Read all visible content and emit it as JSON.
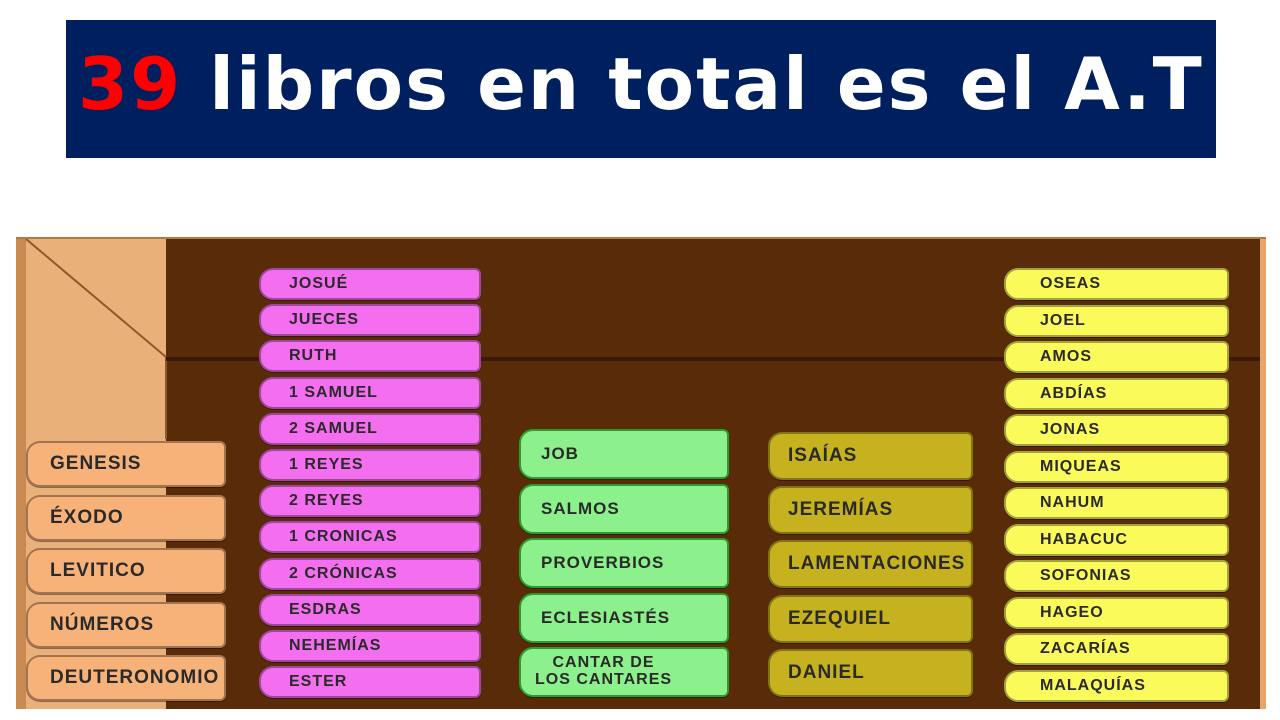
{
  "title": {
    "number": "39",
    "rest": " libros en total es el A.T"
  },
  "colors": {
    "title_bg": "#001f5f",
    "title_number": "#ff0000",
    "pentateuch": "#f7b27a",
    "history": "#f46ef0",
    "poetry": "#8cf08c",
    "major_prophets": "#c6b21e",
    "minor_prophets": "#fafa5a",
    "shelf_dark": "#5a2b08"
  },
  "groups": {
    "pentateuch": [
      "GENESIS",
      "ÉXODO",
      "LEVITICO",
      "NÚMEROS",
      "DEUTERONOMIO"
    ],
    "history": [
      "JOSUÉ",
      "JUECES",
      "RUTH",
      "1 SAMUEL",
      "2 SAMUEL",
      "1 REYES",
      "2 REYES",
      "1 CRONICAS",
      "2 CRÓNICAS",
      "ESDRAS",
      "NEHEMÍAS",
      "ESTER"
    ],
    "poetry": [
      "JOB",
      "SALMOS",
      "PROVERBIOS",
      "ECLESIASTÉS",
      "CANTAR DE\nLOS CANTARES"
    ],
    "major_prophets": [
      "ISAÍAS",
      "JEREMÍAS",
      "LAMENTACIONES",
      "EZEQUIEL",
      "DANIEL"
    ],
    "minor_prophets": [
      "OSEAS",
      "JOEL",
      "AMOS",
      "ABDÍAS",
      "JONAS",
      "MIQUEAS",
      "NAHUM",
      "HABACUC",
      "SOFONIAS",
      "HAGEO",
      "ZACARÍAS",
      "MALAQUÍAS"
    ]
  }
}
